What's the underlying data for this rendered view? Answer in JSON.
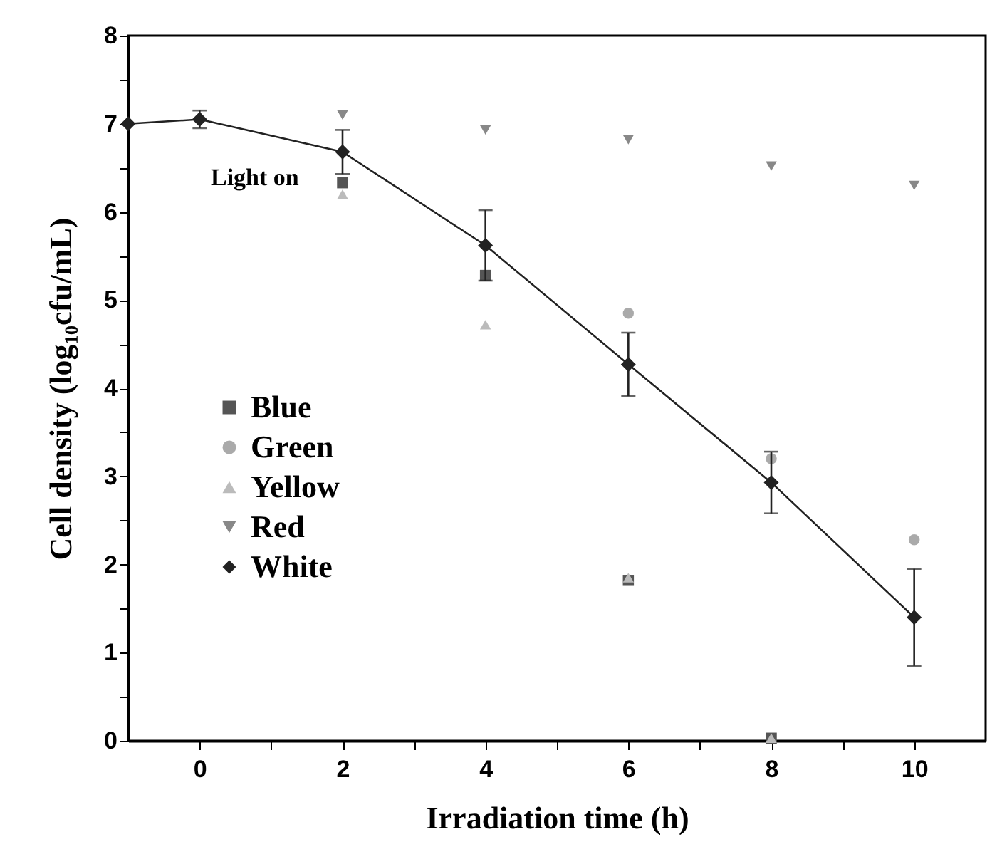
{
  "chart_data": {
    "type": "scatter",
    "xlabel": "Irradiation time (h)",
    "ylabel": "Cell density (log₁₀cfu/mL)",
    "xlim": [
      -1,
      11
    ],
    "ylim": [
      0,
      8
    ],
    "xticks": [
      0,
      {
        "value": 1,
        "label": null
      },
      2,
      {
        "value": 3,
        "label": null
      },
      4,
      {
        "value": 5,
        "label": null
      },
      6,
      {
        "value": 7,
        "label": null
      },
      8,
      {
        "value": 9,
        "label": null
      },
      10
    ],
    "yticks": [
      0,
      {
        "value": 0.5,
        "label": null
      },
      1,
      {
        "value": 1.5,
        "label": null
      },
      2,
      {
        "value": 2.5,
        "label": null
      },
      3,
      {
        "value": 3.5,
        "label": null
      },
      4,
      {
        "value": 4.5,
        "label": null
      },
      5,
      {
        "value": 5.5,
        "label": null
      },
      6,
      {
        "value": 6.5,
        "label": null
      },
      7,
      {
        "value": 7.5,
        "label": null
      },
      8
    ],
    "x": [
      2,
      4,
      6,
      8,
      10
    ],
    "series": [
      {
        "name": "Blue",
        "color": "#555555",
        "marker": "square",
        "values": [
          6.33,
          5.28,
          1.82,
          0.03,
          null
        ]
      },
      {
        "name": "Green",
        "color": "#aaaaaa",
        "marker": "circle",
        "values": [
          null,
          null,
          4.85,
          3.2,
          2.28
        ]
      },
      {
        "name": "Yellow",
        "color": "#bbbbbb",
        "marker": "triangle",
        "values": [
          6.2,
          4.72,
          1.85,
          0.03,
          null
        ]
      },
      {
        "name": "Red",
        "color": "#888888",
        "marker": "triangle-down",
        "values": [
          7.1,
          6.93,
          6.82,
          6.52,
          6.3
        ]
      },
      {
        "name": "White",
        "type": "line",
        "color": "#222222",
        "marker": "diamond",
        "line_style": "solid",
        "x": [
          -1,
          0,
          2,
          4,
          6,
          8,
          10
        ],
        "values": [
          7.0,
          7.05,
          6.68,
          5.62,
          4.27,
          2.93,
          1.4
        ],
        "errors": [
          null,
          0.1,
          0.25,
          0.4,
          0.36,
          0.35,
          0.55
        ]
      }
    ],
    "annotations": [
      "Light on"
    ],
    "legend": "left",
    "grid": false
  }
}
